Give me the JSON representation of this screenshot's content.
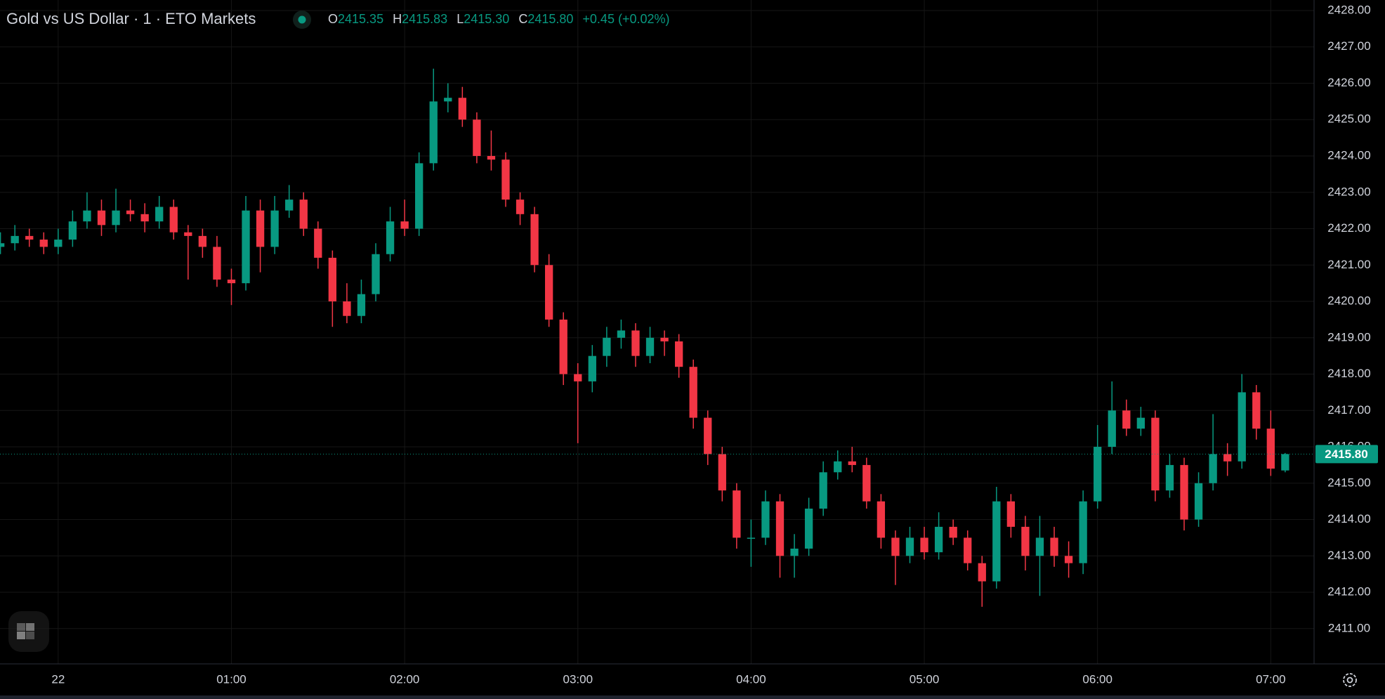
{
  "chart_data": {
    "type": "candlestick",
    "title": "Gold vs US Dollar · 1 · ETO Markets",
    "legend": {
      "open_label": "O",
      "open": "2415.35",
      "high_label": "H",
      "high": "2415.83",
      "low_label": "L",
      "low": "2415.30",
      "close_label": "C",
      "close": "2415.80",
      "change": "+0.45 (+0.02%)"
    },
    "up_color": "#089981",
    "down_color": "#f23645",
    "categories": [
      null,
      null,
      null,
      null,
      null,
      null,
      null,
      null,
      null,
      null,
      null,
      null,
      null,
      null,
      null,
      null,
      null,
      null,
      null,
      null,
      null,
      null,
      null,
      null,
      null,
      null,
      null,
      null,
      null,
      null,
      null,
      null,
      null,
      null,
      null,
      null,
      null,
      null,
      null,
      null,
      null,
      null,
      null,
      null,
      null,
      null,
      null,
      null,
      null,
      null,
      null,
      null,
      null,
      null,
      null,
      null,
      null,
      null,
      null,
      null,
      null,
      null,
      null,
      null,
      null,
      null,
      null,
      null,
      null,
      null,
      null,
      null,
      null,
      null,
      null,
      null,
      null,
      null,
      null,
      null,
      null,
      null,
      null,
      null,
      null,
      null,
      null,
      null,
      null,
      null
    ],
    "open": [
      2421.5,
      2421.6,
      2421.8,
      2421.7,
      2421.5,
      2421.7,
      2422.2,
      2422.5,
      2422.1,
      2422.5,
      2422.4,
      2422.2,
      2422.6,
      2421.9,
      2421.8,
      2421.5,
      2420.6,
      2420.5,
      2422.5,
      2421.5,
      2422.5,
      2422.8,
      2422.0,
      2421.2,
      2420.0,
      2419.6,
      2420.2,
      2421.3,
      2422.2,
      2422.0,
      2423.8,
      2425.5,
      2425.6,
      2425.0,
      2424.0,
      2423.9,
      2422.8,
      2422.4,
      2421.0,
      2419.5,
      2418.0,
      2417.8,
      2418.5,
      2419.0,
      2419.2,
      2418.5,
      2419.0,
      2418.9,
      2418.2,
      2416.8,
      2415.8,
      2414.8,
      2413.5,
      2413.5,
      2414.5,
      2413.0,
      2413.2,
      2414.3,
      2415.3,
      2415.6,
      2415.5,
      2414.5,
      2413.5,
      2413.0,
      2413.5,
      2413.1,
      2413.8,
      2413.5,
      2412.8,
      2412.3,
      2414.5,
      2413.8,
      2413.0,
      2413.5,
      2413.0,
      2412.8,
      2414.5,
      2416.0,
      2417.0,
      2416.5,
      2416.8,
      2414.8,
      2415.5,
      2414.0,
      2415.0,
      2415.8,
      2415.6,
      2417.5,
      2416.5,
      2415.35
    ],
    "high": [
      2421.9,
      2422.1,
      2422.0,
      2421.9,
      2422.0,
      2422.5,
      2423.0,
      2422.8,
      2423.1,
      2422.8,
      2422.7,
      2422.9,
      2422.8,
      2422.1,
      2422.0,
      2421.8,
      2420.9,
      2422.9,
      2422.8,
      2422.9,
      2423.2,
      2423.0,
      2422.2,
      2421.4,
      2420.5,
      2420.6,
      2421.6,
      2422.6,
      2422.8,
      2424.1,
      2426.4,
      2426.0,
      2425.9,
      2425.2,
      2424.7,
      2424.1,
      2423.0,
      2422.6,
      2421.3,
      2419.7,
      2418.3,
      2418.8,
      2419.3,
      2419.5,
      2419.4,
      2419.3,
      2419.2,
      2419.1,
      2418.4,
      2417.0,
      2416.0,
      2415.0,
      2414.0,
      2414.8,
      2414.7,
      2413.6,
      2414.6,
      2415.6,
      2415.9,
      2416.0,
      2415.7,
      2414.7,
      2413.7,
      2413.8,
      2413.8,
      2414.2,
      2414.0,
      2413.7,
      2413.0,
      2414.9,
      2414.7,
      2414.1,
      2414.1,
      2413.8,
      2413.4,
      2414.8,
      2416.6,
      2417.8,
      2417.3,
      2417.1,
      2417.0,
      2415.8,
      2415.7,
      2415.3,
      2416.9,
      2416.1,
      2418.0,
      2417.7,
      2417.0,
      2415.83
    ],
    "low": [
      2421.3,
      2421.4,
      2421.5,
      2421.3,
      2421.3,
      2421.5,
      2422.0,
      2421.8,
      2421.9,
      2422.2,
      2421.9,
      2422.0,
      2421.7,
      2420.6,
      2421.2,
      2420.4,
      2419.9,
      2420.3,
      2420.8,
      2421.3,
      2422.3,
      2421.8,
      2420.9,
      2419.3,
      2419.4,
      2419.4,
      2420.0,
      2421.1,
      2421.8,
      2421.8,
      2423.6,
      2425.2,
      2424.8,
      2423.8,
      2423.6,
      2422.6,
      2422.1,
      2420.8,
      2419.3,
      2417.7,
      2416.1,
      2417.5,
      2418.2,
      2418.7,
      2418.2,
      2418.3,
      2418.5,
      2417.9,
      2416.5,
      2415.5,
      2414.5,
      2413.2,
      2412.7,
      2413.3,
      2412.4,
      2412.4,
      2413.0,
      2414.1,
      2415.1,
      2415.3,
      2414.3,
      2413.2,
      2412.2,
      2412.8,
      2412.9,
      2412.9,
      2413.3,
      2412.6,
      2411.6,
      2412.1,
      2413.5,
      2412.6,
      2411.9,
      2412.7,
      2412.4,
      2412.5,
      2414.3,
      2415.8,
      2416.3,
      2416.3,
      2414.5,
      2414.6,
      2413.7,
      2413.8,
      2414.8,
      2415.2,
      2415.4,
      2416.2,
      2415.2,
      2415.3
    ],
    "close": [
      2421.6,
      2421.8,
      2421.7,
      2421.5,
      2421.7,
      2422.2,
      2422.5,
      2422.1,
      2422.5,
      2422.4,
      2422.2,
      2422.6,
      2421.9,
      2421.8,
      2421.5,
      2420.6,
      2420.5,
      2422.5,
      2421.5,
      2422.5,
      2422.8,
      2422.0,
      2421.2,
      2420.0,
      2419.6,
      2420.2,
      2421.3,
      2422.2,
      2422.0,
      2423.8,
      2425.5,
      2425.6,
      2425.0,
      2424.0,
      2423.9,
      2422.8,
      2422.4,
      2421.0,
      2419.5,
      2418.0,
      2417.8,
      2418.5,
      2419.0,
      2419.2,
      2418.5,
      2419.0,
      2418.9,
      2418.2,
      2416.8,
      2415.8,
      2414.8,
      2413.5,
      2413.5,
      2414.5,
      2413.0,
      2413.2,
      2414.3,
      2415.3,
      2415.6,
      2415.5,
      2414.5,
      2413.5,
      2413.0,
      2413.5,
      2413.1,
      2413.8,
      2413.5,
      2412.8,
      2412.3,
      2414.5,
      2413.8,
      2413.0,
      2413.5,
      2413.0,
      2412.8,
      2414.5,
      2416.0,
      2417.0,
      2416.5,
      2416.8,
      2414.8,
      2415.5,
      2414.0,
      2415.0,
      2415.8,
      2415.6,
      2417.5,
      2416.5,
      2415.4,
      2415.8
    ],
    "xlim": [
      -0.03,
      91
    ],
    "xticks": [
      {
        "value": 4,
        "label": "22"
      },
      {
        "value": 16,
        "label": "01:00"
      },
      {
        "value": 28,
        "label": "02:00"
      },
      {
        "value": 40,
        "label": "03:00"
      },
      {
        "value": 52,
        "label": "04:00"
      },
      {
        "value": 64,
        "label": "05:00"
      },
      {
        "value": 76,
        "label": "06:00"
      },
      {
        "value": 88,
        "label": "07:00"
      }
    ],
    "ylim": [
      2410.03,
      2428.29
    ],
    "yticks": [
      {
        "value": 2411,
        "label": "2411.00"
      },
      {
        "value": 2412,
        "label": "2412.00"
      },
      {
        "value": 2413,
        "label": "2413.00"
      },
      {
        "value": 2414,
        "label": "2414.00"
      },
      {
        "value": 2415,
        "label": "2415.00"
      },
      {
        "value": 2416,
        "label": "2416.00"
      },
      {
        "value": 2417,
        "label": "2417.00"
      },
      {
        "value": 2418,
        "label": "2418.00"
      },
      {
        "value": 2419,
        "label": "2419.00"
      },
      {
        "value": 2420,
        "label": "2420.00"
      },
      {
        "value": 2421,
        "label": "2421.00"
      },
      {
        "value": 2422,
        "label": "2422.00"
      },
      {
        "value": 2423,
        "label": "2423.00"
      },
      {
        "value": 2424,
        "label": "2424.00"
      },
      {
        "value": 2425,
        "label": "2425.00"
      },
      {
        "value": 2426,
        "label": "2426.00"
      },
      {
        "value": 2427,
        "label": "2427.00"
      },
      {
        "value": 2428,
        "label": "2428.00"
      }
    ],
    "grid": true
  }
}
